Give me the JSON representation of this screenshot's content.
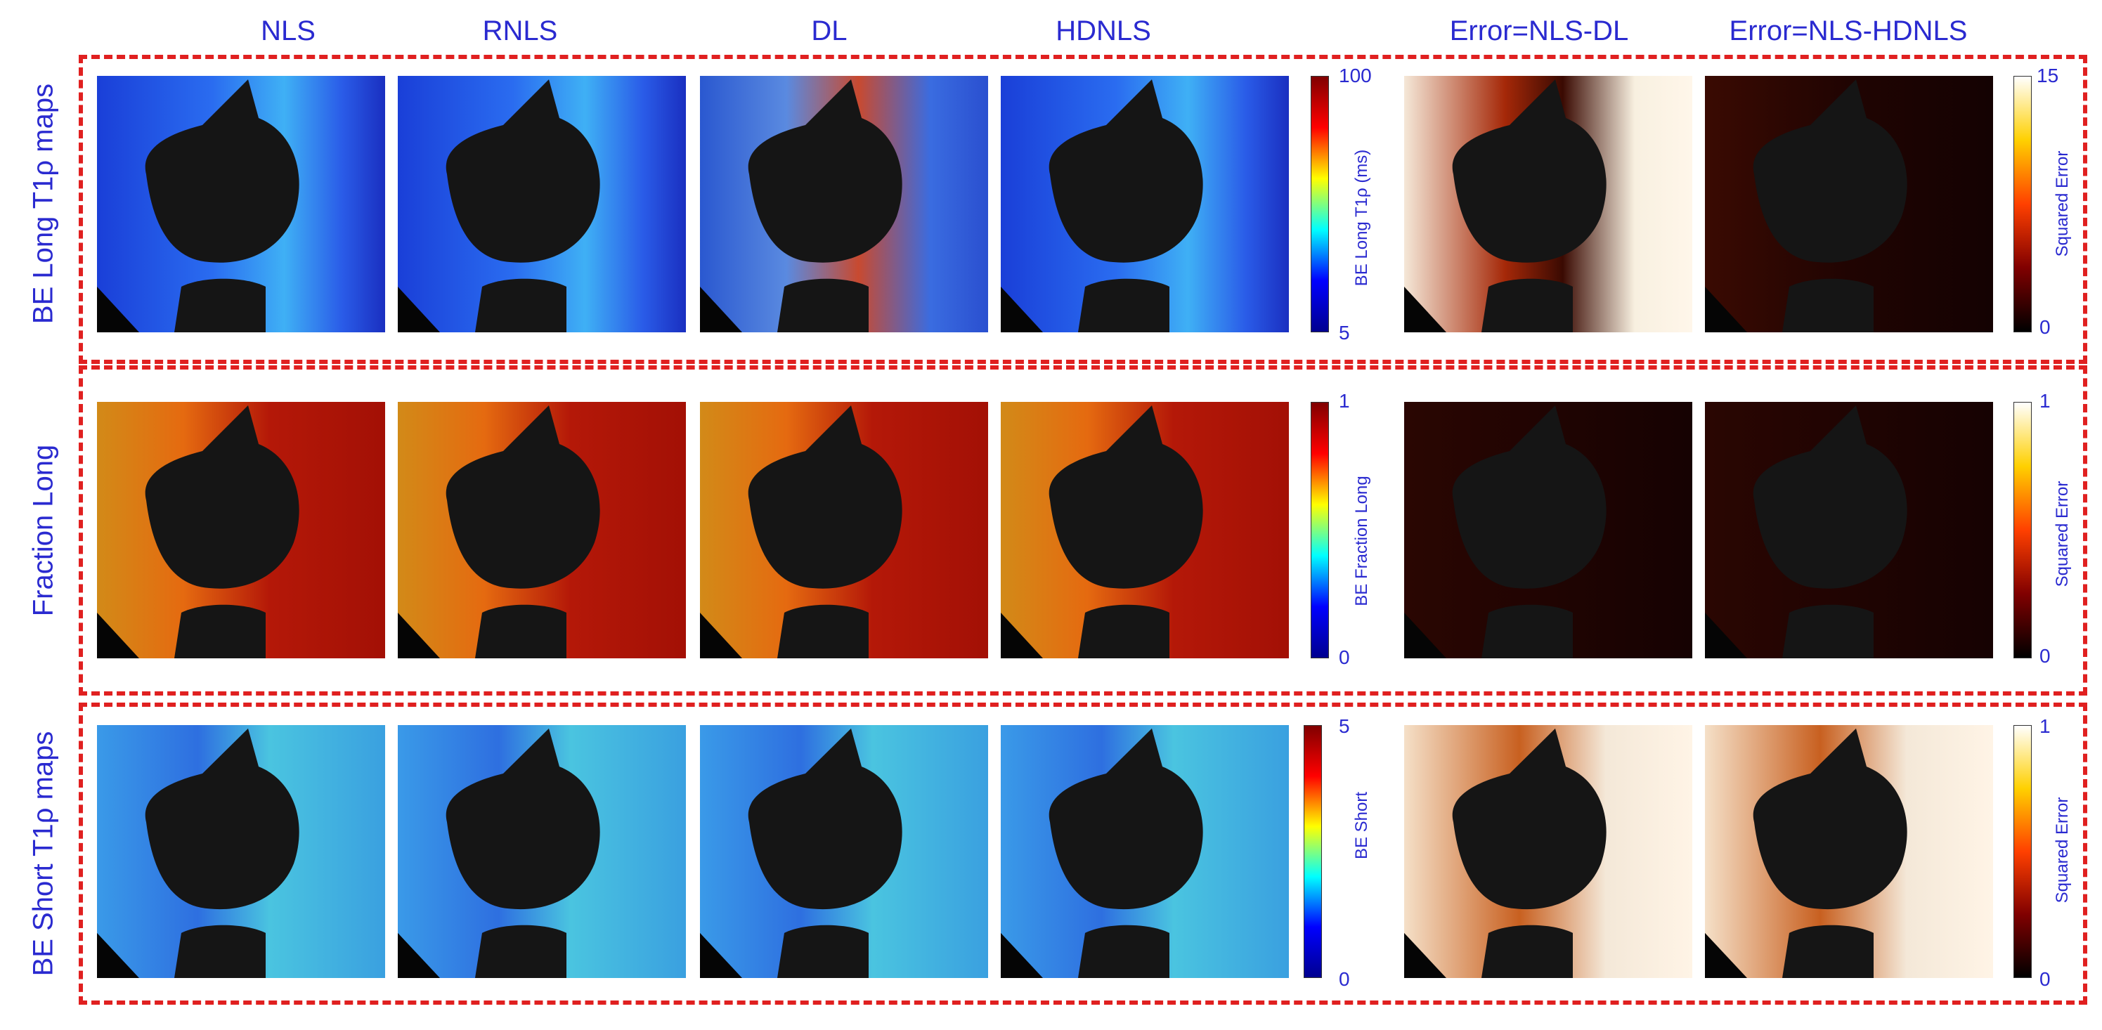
{
  "columns": [
    "NLS",
    "RNLS",
    "DL",
    "HDNLS",
    "Error=NLS-DL",
    "Error=NLS-HDNLS"
  ],
  "rows": [
    {
      "label": "BE Long  T1ρ maps",
      "map_colorbar": {
        "label": "BE Long T1ρ (ms)",
        "max": "100",
        "min": "5"
      },
      "error_colorbar": {
        "label": "Squared Error",
        "max": "15",
        "min": "0"
      }
    },
    {
      "label": "Fraction Long",
      "map_colorbar": {
        "label": "BE Fraction Long",
        "max": "1",
        "min": "0"
      },
      "error_colorbar": {
        "label": "Squared Error",
        "max": "1",
        "min": "0"
      }
    },
    {
      "label": "BE Short T1ρ maps",
      "map_colorbar": {
        "label": "BE Short",
        "max": "5",
        "min": "0"
      },
      "error_colorbar": {
        "label": "Squared Error",
        "max": "1",
        "min": "0"
      }
    }
  ],
  "colors": {
    "frame": "#e02020",
    "text": "#2a2ad0"
  }
}
